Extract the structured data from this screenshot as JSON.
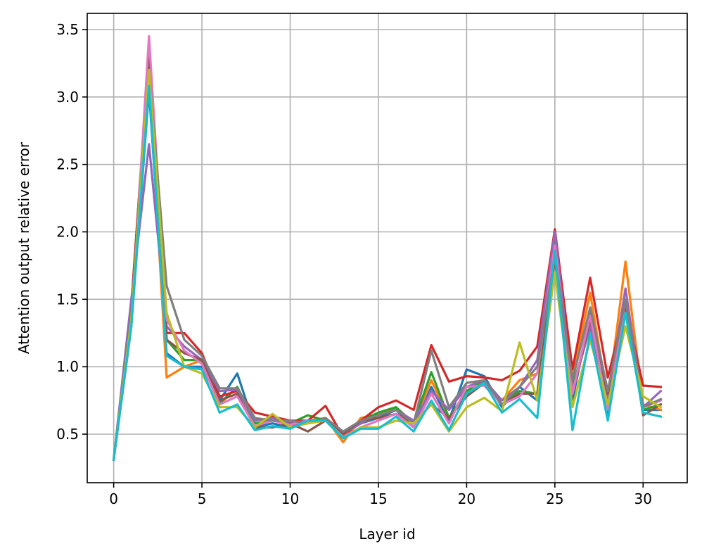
{
  "chart_data": {
    "type": "line",
    "title": "",
    "xlabel": "Layer id",
    "ylabel": "Attention output relative error",
    "xlim": [
      -1.5,
      32.5
    ],
    "ylim": [
      0.14,
      3.62
    ],
    "xticks": [
      0,
      5,
      10,
      15,
      20,
      25,
      30
    ],
    "yticks": [
      0.5,
      1.0,
      1.5,
      2.0,
      2.5,
      3.0,
      3.5
    ],
    "grid": true,
    "legend": "none",
    "x": [
      0,
      1,
      2,
      3,
      4,
      5,
      6,
      7,
      8,
      9,
      10,
      11,
      12,
      13,
      14,
      15,
      16,
      17,
      18,
      19,
      20,
      21,
      22,
      23,
      24,
      25,
      26,
      27,
      28,
      29,
      30,
      31
    ],
    "series": [
      {
        "color": "#1f77b4",
        "values": [
          0.31,
          1.3,
          3.05,
          1.1,
          1.0,
          1.0,
          0.75,
          0.95,
          0.55,
          0.58,
          0.55,
          0.6,
          0.6,
          0.5,
          0.58,
          0.62,
          0.68,
          0.55,
          0.85,
          0.6,
          0.98,
          0.93,
          0.7,
          0.85,
          0.75,
          1.85,
          0.75,
          1.4,
          0.65,
          1.45,
          0.68,
          0.68
        ]
      },
      {
        "color": "#ff7f0e",
        "values": [
          0.31,
          1.4,
          3.15,
          0.92,
          1.0,
          1.05,
          0.72,
          0.85,
          0.6,
          0.62,
          0.58,
          0.6,
          0.62,
          0.44,
          0.62,
          0.65,
          0.7,
          0.58,
          0.9,
          0.62,
          0.8,
          0.88,
          0.75,
          0.9,
          0.95,
          1.7,
          0.92,
          1.55,
          0.75,
          1.78,
          0.72,
          0.68
        ]
      },
      {
        "color": "#2ca02c",
        "values": [
          0.31,
          1.45,
          3.33,
          1.2,
          1.05,
          1.05,
          0.73,
          0.85,
          0.58,
          0.6,
          0.58,
          0.64,
          0.6,
          0.5,
          0.6,
          0.66,
          0.7,
          0.58,
          0.96,
          0.62,
          0.82,
          0.9,
          0.72,
          0.82,
          0.8,
          1.95,
          0.85,
          1.3,
          0.7,
          1.4,
          0.68,
          0.72
        ]
      },
      {
        "color": "#d62728",
        "values": [
          0.31,
          1.45,
          3.3,
          1.25,
          1.25,
          1.1,
          0.78,
          0.82,
          0.66,
          0.63,
          0.6,
          0.6,
          0.71,
          0.48,
          0.6,
          0.7,
          0.75,
          0.68,
          1.16,
          0.89,
          0.93,
          0.92,
          0.9,
          0.97,
          1.15,
          2.02,
          0.98,
          1.66,
          0.92,
          1.45,
          0.86,
          0.85
        ]
      },
      {
        "color": "#9467bd",
        "values": [
          0.31,
          1.5,
          2.65,
          1.3,
          1.15,
          1.05,
          0.82,
          0.83,
          0.6,
          0.62,
          0.58,
          0.6,
          0.6,
          0.5,
          0.58,
          0.64,
          0.68,
          0.6,
          0.82,
          0.68,
          0.85,
          0.9,
          0.75,
          0.85,
          1.05,
          2.0,
          0.82,
          1.3,
          0.75,
          1.58,
          0.7,
          0.82
        ]
      },
      {
        "color": "#8c564b",
        "values": [
          0.31,
          1.35,
          3.3,
          1.2,
          1.1,
          1.05,
          0.75,
          0.8,
          0.55,
          0.55,
          0.58,
          0.52,
          0.6,
          0.5,
          0.6,
          0.62,
          0.65,
          0.58,
          0.72,
          0.62,
          0.78,
          0.88,
          0.72,
          0.8,
          0.8,
          1.8,
          0.8,
          1.35,
          0.8,
          1.5,
          0.64,
          0.72
        ]
      },
      {
        "color": "#e377c2",
        "values": [
          0.31,
          1.3,
          3.45,
          1.35,
          1.12,
          1.02,
          0.72,
          0.78,
          0.56,
          0.6,
          0.57,
          0.6,
          0.6,
          0.48,
          0.55,
          0.6,
          0.65,
          0.55,
          0.8,
          0.58,
          0.85,
          0.86,
          0.72,
          0.78,
          0.95,
          1.9,
          0.8,
          1.38,
          0.68,
          1.5,
          0.7,
          0.75
        ]
      },
      {
        "color": "#7f7f7f",
        "values": [
          0.31,
          1.4,
          3.2,
          1.6,
          1.2,
          1.08,
          0.84,
          0.84,
          0.62,
          0.6,
          0.6,
          0.58,
          0.62,
          0.52,
          0.6,
          0.64,
          0.68,
          0.58,
          1.12,
          0.7,
          0.88,
          0.9,
          0.72,
          0.85,
          1.0,
          1.82,
          0.9,
          1.44,
          0.82,
          1.5,
          0.7,
          0.76
        ]
      },
      {
        "color": "#bcbd22",
        "values": [
          0.31,
          1.35,
          3.2,
          1.4,
          1.0,
          0.95,
          0.7,
          0.7,
          0.55,
          0.65,
          0.55,
          0.58,
          0.6,
          0.47,
          0.55,
          0.55,
          0.6,
          0.58,
          0.72,
          0.52,
          0.7,
          0.77,
          0.67,
          1.18,
          0.75,
          1.7,
          0.7,
          1.2,
          0.72,
          1.3,
          0.78,
          0.7
        ]
      },
      {
        "color": "#17becf",
        "values": [
          0.31,
          1.3,
          3.08,
          1.08,
          1.0,
          0.98,
          0.66,
          0.72,
          0.53,
          0.56,
          0.54,
          0.6,
          0.6,
          0.47,
          0.54,
          0.54,
          0.63,
          0.52,
          0.75,
          0.53,
          0.8,
          0.88,
          0.66,
          0.76,
          0.62,
          1.86,
          0.53,
          1.25,
          0.6,
          1.4,
          0.66,
          0.63
        ]
      }
    ]
  }
}
